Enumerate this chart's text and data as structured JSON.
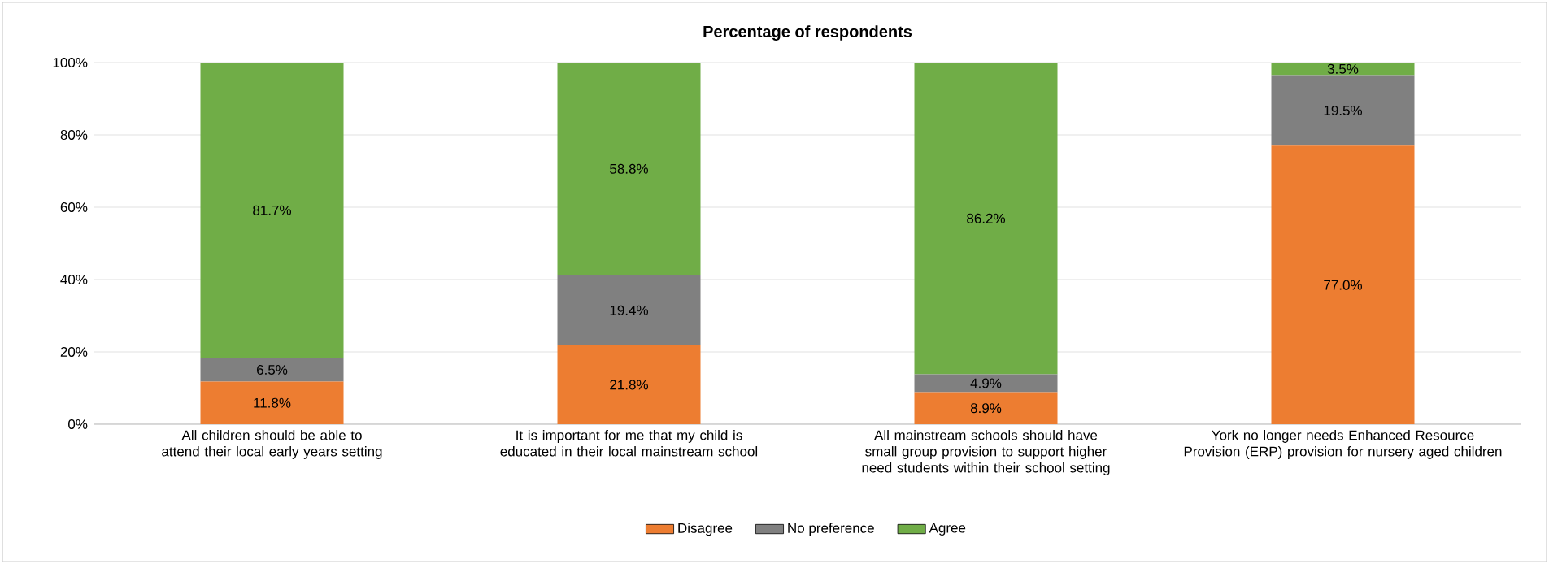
{
  "chart_data": {
    "type": "bar",
    "title": "Percentage of respondents",
    "categories": [
      "All children should be able to attend their local early years setting",
      "It is important for me that my child is educated in their local mainstream school",
      "All mainstream schools should have small group provision to support higher need students within their school setting",
      "York no longer needs Enhanced Resource Provision (ERP) provision for nursery aged children"
    ],
    "series": [
      {
        "name": "Disagree",
        "color": "#ed7d31",
        "values": [
          11.8,
          21.8,
          8.9,
          77.0
        ],
        "value_labels": [
          "11.8%",
          "21.8%",
          "8.9%",
          "77.0%"
        ]
      },
      {
        "name": "No preference",
        "color": "#808080",
        "values": [
          6.5,
          19.4,
          4.9,
          19.5
        ],
        "value_labels": [
          "6.5%",
          "19.4%",
          "4.9%",
          "19.5%"
        ]
      },
      {
        "name": "Agree",
        "color": "#70ad47",
        "values": [
          81.7,
          58.8,
          86.2,
          3.5
        ],
        "value_labels": [
          "81.7%",
          "58.8%",
          "86.2%",
          "3.5%"
        ]
      }
    ],
    "stacked": true,
    "ylim": [
      0,
      100
    ],
    "yticks": [
      {
        "value": 0,
        "label": "0%"
      },
      {
        "value": 20,
        "label": "20%"
      },
      {
        "value": 40,
        "label": "40%"
      },
      {
        "value": 60,
        "label": "60%"
      },
      {
        "value": 80,
        "label": "80%"
      },
      {
        "value": 100,
        "label": "100%"
      }
    ],
    "grid": "y",
    "legend": "bottom"
  }
}
